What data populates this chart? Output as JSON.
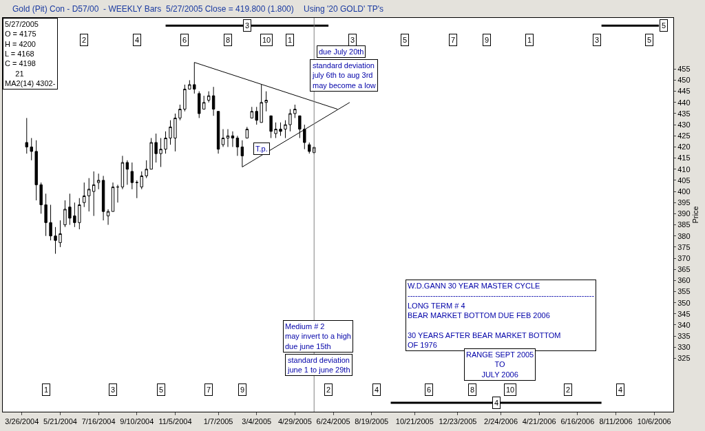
{
  "chart_data": {
    "type": "candlestick",
    "title": "Gold (Pit) Con - D57/00  - WEEKLY Bars  5/27/2005 Close = 419.800 (1.800)",
    "subtitle": "Using '20 GOLD' TP's",
    "ylabel": "Price",
    "x": [
      "2004-04-02",
      "2004-04-09",
      "2004-04-16",
      "2004-04-23",
      "2004-04-30",
      "2004-05-07",
      "2004-05-14",
      "2004-05-21",
      "2004-05-28",
      "2004-06-04",
      "2004-06-11",
      "2004-06-18",
      "2004-06-25",
      "2004-07-02",
      "2004-07-09",
      "2004-07-16",
      "2004-07-23",
      "2004-07-30",
      "2004-08-06",
      "2004-08-13",
      "2004-08-20",
      "2004-08-27",
      "2004-09-03",
      "2004-09-10",
      "2004-09-17",
      "2004-09-24",
      "2004-10-01",
      "2004-10-08",
      "2004-10-15",
      "2004-10-22",
      "2004-10-29",
      "2004-11-05",
      "2004-11-12",
      "2004-11-19",
      "2004-11-26",
      "2004-12-03",
      "2004-12-10",
      "2004-12-17",
      "2004-12-24",
      "2004-12-31",
      "2005-01-07",
      "2005-01-14",
      "2005-01-21",
      "2005-01-28",
      "2005-02-04",
      "2005-02-11",
      "2005-02-18",
      "2005-02-25",
      "2005-03-04",
      "2005-03-11",
      "2005-03-18",
      "2005-03-25",
      "2005-04-01",
      "2005-04-08",
      "2005-04-15",
      "2005-04-22",
      "2005-04-29",
      "2005-05-06",
      "2005-05-13",
      "2005-05-20",
      "2005-05-27"
    ],
    "ohlc": [
      [
        422,
        433,
        417,
        420
      ],
      [
        420,
        424,
        414,
        418
      ],
      [
        418,
        423,
        396,
        403
      ],
      [
        403,
        404,
        390,
        394
      ],
      [
        394,
        399,
        380,
        386
      ],
      [
        386,
        394,
        378,
        380
      ],
      [
        380,
        384,
        372,
        378
      ],
      [
        377,
        387,
        375,
        381
      ],
      [
        385,
        396,
        384,
        392
      ],
      [
        393,
        399,
        385,
        388
      ],
      [
        389,
        395,
        384,
        386
      ],
      [
        386,
        397,
        383,
        394
      ],
      [
        395,
        404,
        393,
        398
      ],
      [
        398,
        406,
        391,
        401
      ],
      [
        400,
        409,
        389,
        403
      ],
      [
        404,
        408,
        401,
        405
      ],
      [
        405,
        407,
        387,
        391
      ],
      [
        389,
        392,
        385,
        391
      ],
      [
        391,
        404,
        391,
        402
      ],
      [
        402,
        403,
        395,
        402
      ],
      [
        402,
        416,
        401,
        413
      ],
      [
        413,
        414,
        403,
        410
      ],
      [
        409,
        413,
        401,
        404
      ],
      [
        404,
        405,
        397,
        404
      ],
      [
        402,
        409,
        401,
        407
      ],
      [
        407,
        414,
        406,
        410
      ],
      [
        410,
        424,
        410,
        422
      ],
      [
        422,
        426,
        413,
        417
      ],
      [
        417,
        424,
        411,
        419
      ],
      [
        419,
        427,
        417,
        424
      ],
      [
        424,
        432,
        421,
        429
      ],
      [
        424,
        435,
        418,
        433
      ],
      [
        433,
        439,
        432,
        437
      ],
      [
        437,
        448,
        436,
        446
      ],
      [
        446,
        450,
        446,
        448
      ],
      [
        448,
        458,
        444,
        446
      ],
      [
        444,
        445,
        433,
        435
      ],
      [
        437,
        443,
        437,
        440
      ],
      [
        441,
        445,
        440,
        443
      ],
      [
        443,
        447,
        434,
        437
      ],
      [
        436,
        436,
        417,
        419
      ],
      [
        421,
        428,
        420,
        424
      ],
      [
        424,
        428,
        420,
        425
      ],
      [
        425,
        427,
        420,
        424
      ],
      [
        424,
        425,
        416,
        420
      ],
      [
        420,
        423,
        411,
        416
      ],
      [
        424,
        429,
        424,
        428
      ],
      [
        433,
        438,
        433,
        436
      ],
      [
        436,
        438,
        430,
        432
      ],
      [
        431,
        448,
        431,
        440
      ],
      [
        440,
        445,
        436,
        441
      ],
      [
        434,
        434,
        424,
        427
      ],
      [
        426,
        431,
        424,
        428
      ],
      [
        428,
        431,
        425,
        427
      ],
      [
        428,
        432,
        424,
        430
      ],
      [
        430,
        437,
        427,
        435
      ],
      [
        435,
        439,
        433,
        437
      ],
      [
        434,
        434,
        424,
        428
      ],
      [
        428,
        430,
        419,
        422
      ],
      [
        421,
        422,
        417,
        418
      ],
      [
        417.5,
        420,
        416.8,
        419.8
      ]
    ],
    "series": [
      {
        "type": "line",
        "color": "#000000",
        "x": [
          "2004-12-03",
          "2005-06-30"
        ],
        "values": [
          458,
          437
        ]
      },
      {
        "type": "line",
        "color": "#000000",
        "x": [
          "2005-02-11",
          "2005-07-18"
        ],
        "values": [
          411,
          440
        ]
      },
      {
        "type": "line",
        "color": "#000000",
        "x": [
          "2004-10-22",
          "2005-06-17"
        ],
        "values": [
          474.5,
          474.5
        ]
      },
      {
        "type": "line",
        "color": "#000000",
        "x": [
          "2006-07-21",
          "2006-10-13"
        ],
        "values": [
          474.5,
          474.5
        ]
      },
      {
        "type": "line",
        "color": "#000000",
        "x": [
          "2005-09-16",
          "2006-07-21"
        ],
        "values": [
          305,
          305
        ]
      }
    ],
    "ref_lines": [
      {
        "axis": "x",
        "value": "2005-05-27",
        "color": "#808080"
      }
    ],
    "annotations": [
      "5/27/2005\nO = 4175\nH = 4200\nL = 4168\nC = 4198\n     21\nMA2(14) 4302-",
      "due July 20th",
      "standard deviation\njuly 6th to aug 3rd\nmay become a low",
      "T.p.",
      "Medium # 2\nmay invert to a high\ndue june 15th",
      "standard deviation\njune 1 to june 29th",
      "W.D.GANN 30 YEAR MASTER CYCLE\n--------------------------------------------------------------------------\nLONG TERM # 4\nBEAR MARKET BOTTOM DUE FEB 2006\n\n30 YEARS AFTER BEAR MARKET BOTTOM\nOF 1976",
      "RANGE SEPT 2005\nTO\nJULY 2006",
      {
        "text": "2",
        "x": "2004-06-25",
        "y": 468
      },
      {
        "text": "4",
        "x": "2004-09-10",
        "y": 468
      },
      {
        "text": "6",
        "x": "2004-11-19",
        "y": 468
      },
      {
        "text": "8",
        "x": "2005-01-21",
        "y": 468
      },
      {
        "text": "10",
        "x": "2005-03-18",
        "y": 468
      },
      {
        "text": "1",
        "x": "2005-04-22",
        "y": 468
      },
      {
        "text": "3",
        "x": "2005-07-22",
        "y": 468
      },
      {
        "text": "5",
        "x": "2005-10-07",
        "y": 468
      },
      {
        "text": "7",
        "x": "2005-12-16",
        "y": 468
      },
      {
        "text": "9",
        "x": "2006-02-03",
        "y": 468
      },
      {
        "text": "1",
        "x": "2006-04-07",
        "y": 468
      },
      {
        "text": "3",
        "x": "2006-07-14",
        "y": 468
      },
      {
        "text": "5",
        "x": "2006-09-29",
        "y": 468
      },
      {
        "text": "1",
        "x": "2004-04-30",
        "y": 311
      },
      {
        "text": "3",
        "x": "2004-08-06",
        "y": 311
      },
      {
        "text": "5",
        "x": "2004-10-15",
        "y": 311
      },
      {
        "text": "7",
        "x": "2004-12-24",
        "y": 311
      },
      {
        "text": "9",
        "x": "2005-02-11",
        "y": 311
      },
      {
        "text": "2",
        "x": "2005-06-17",
        "y": 311
      },
      {
        "text": "4",
        "x": "2005-08-26",
        "y": 311
      },
      {
        "text": "6",
        "x": "2005-11-11",
        "y": 311
      },
      {
        "text": "8",
        "x": "2006-01-13",
        "y": 311
      },
      {
        "text": "10",
        "x": "2006-03-10",
        "y": 311
      },
      {
        "text": "2",
        "x": "2006-06-02",
        "y": 311
      },
      {
        "text": "4",
        "x": "2006-08-18",
        "y": 311
      },
      {
        "text": "3",
        "x": "2005-02-18",
        "y": 474.5
      },
      {
        "text": "5",
        "x": "2006-10-20",
        "y": 474.5
      },
      {
        "text": "4",
        "x": "2006-02-17",
        "y": 305
      }
    ],
    "xlim": [
      "2004-02-27",
      "2006-11-03"
    ],
    "xticks": [
      {
        "value": "2004-03-26",
        "label": "3/26/2004"
      },
      {
        "value": "2004-05-21",
        "label": "5/21/2004"
      },
      {
        "value": "2004-07-16",
        "label": "7/16/2004"
      },
      {
        "value": "2004-09-10",
        "label": "9/10/2004"
      },
      {
        "value": "2004-11-05",
        "label": "11/5/2004"
      },
      {
        "value": "2005-01-07",
        "label": "1/7/2005"
      },
      {
        "value": "2005-03-04",
        "label": "3/4/2005"
      },
      {
        "value": "2005-04-29",
        "label": "4/29/2005"
      },
      {
        "value": "2005-06-24",
        "label": "6/24/2005"
      },
      {
        "value": "2005-08-19",
        "label": "8/19/2005"
      },
      {
        "value": "2005-10-21",
        "label": "10/21/2005"
      },
      {
        "value": "2005-12-23",
        "label": "12/23/2005"
      },
      {
        "value": "2006-02-24",
        "label": "2/24/2006"
      },
      {
        "value": "2006-04-21",
        "label": "4/21/2006"
      },
      {
        "value": "2006-06-16",
        "label": "6/16/2006"
      },
      {
        "value": "2006-08-11",
        "label": "8/11/2006"
      },
      {
        "value": "2006-10-06",
        "label": "10/6/2006"
      }
    ],
    "ylim": [
      301,
      478
    ],
    "yticks": [
      325,
      330,
      335,
      340,
      345,
      350,
      355,
      360,
      365,
      370,
      375,
      380,
      385,
      390,
      395,
      400,
      405,
      410,
      415,
      420,
      425,
      430,
      435,
      440,
      445,
      450,
      455
    ]
  }
}
